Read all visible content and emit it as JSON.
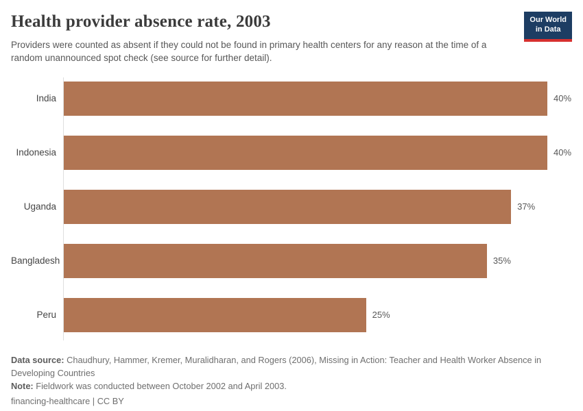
{
  "header": {
    "title": "Health provider absence rate, 2003",
    "subtitle": "Providers were counted as absent if they could not be found in primary health centers for any reason at the time of a random unannounced spot check (see source for further detail).",
    "logo": {
      "line1": "Our World",
      "line2": "in Data"
    }
  },
  "chart_data": {
    "type": "bar",
    "orientation": "horizontal",
    "title": "Health provider absence rate, 2003",
    "categories": [
      "India",
      "Indonesia",
      "Uganda",
      "Bangladesh",
      "Peru"
    ],
    "values": [
      40,
      40,
      37,
      35,
      25
    ],
    "value_labels": [
      "40%",
      "40%",
      "37%",
      "35%",
      "25%"
    ],
    "unit": "%",
    "xlim": [
      0,
      40
    ],
    "grid": false,
    "legend": false,
    "bar_color": "#b17553",
    "axis_color": "#dedede"
  },
  "footer": {
    "data_source_label": "Data source:",
    "data_source_text": " Chaudhury, Hammer, Kremer, Muralidharan, and Rogers (2006), Missing in Action: Teacher and Health Worker Absence in Developing Countries",
    "note_label": "Note:",
    "note_text": " Fieldwork was conducted between October 2002 and April 2003.",
    "slug": "financing-healthcare",
    "separator": " | ",
    "license": "CC BY"
  },
  "colors": {
    "bar": "#b17553",
    "logo_navy": "#1d3d63",
    "logo_red": "#d6302f",
    "axis_line": "#dedede",
    "title_text": "#3b3b3b",
    "subtitle_text": "#575757"
  }
}
